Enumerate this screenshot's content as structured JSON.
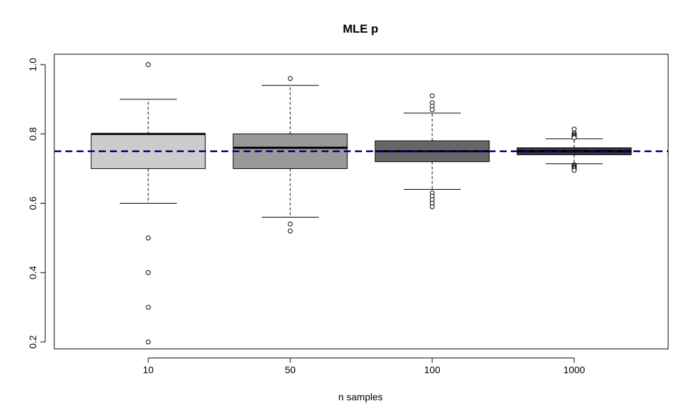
{
  "chart_data": {
    "type": "boxplot",
    "title": "MLE p",
    "xlabel": "n samples",
    "ylabel": "",
    "ylim": [
      0.18,
      1.03
    ],
    "yticks": [
      "0.2",
      "0.4",
      "0.6",
      "0.8",
      "1.0"
    ],
    "grid": false,
    "legend": "none",
    "reference_line": {
      "y": 0.75,
      "style": "dashed",
      "color": "#000080"
    },
    "categories": [
      "10",
      "50",
      "100",
      "1000"
    ],
    "boxes": [
      {
        "category": "10",
        "fill": "#cccccc",
        "whisker_low": 0.6,
        "q1": 0.7,
        "median": 0.8,
        "q3": 0.8,
        "whisker_high": 0.9,
        "outliers": [
          1.0,
          0.5,
          0.4,
          0.3,
          0.2
        ]
      },
      {
        "category": "50",
        "fill": "#999999",
        "whisker_low": 0.56,
        "q1": 0.7,
        "median": 0.76,
        "q3": 0.8,
        "whisker_high": 0.94,
        "outliers": [
          0.96,
          0.54,
          0.52
        ]
      },
      {
        "category": "100",
        "fill": "#666666",
        "whisker_low": 0.64,
        "q1": 0.72,
        "median": 0.75,
        "q3": 0.78,
        "whisker_high": 0.86,
        "outliers": [
          0.91,
          0.89,
          0.88,
          0.87,
          0.63,
          0.62,
          0.61,
          0.6,
          0.59
        ]
      },
      {
        "category": "1000",
        "fill": "#333333",
        "whisker_low": 0.714,
        "q1": 0.74,
        "median": 0.75,
        "q3": 0.76,
        "whisker_high": 0.786,
        "outliers": [
          0.814,
          0.802,
          0.798,
          0.795,
          0.792,
          0.789,
          0.711,
          0.708,
          0.705,
          0.702,
          0.699,
          0.695
        ]
      }
    ]
  }
}
